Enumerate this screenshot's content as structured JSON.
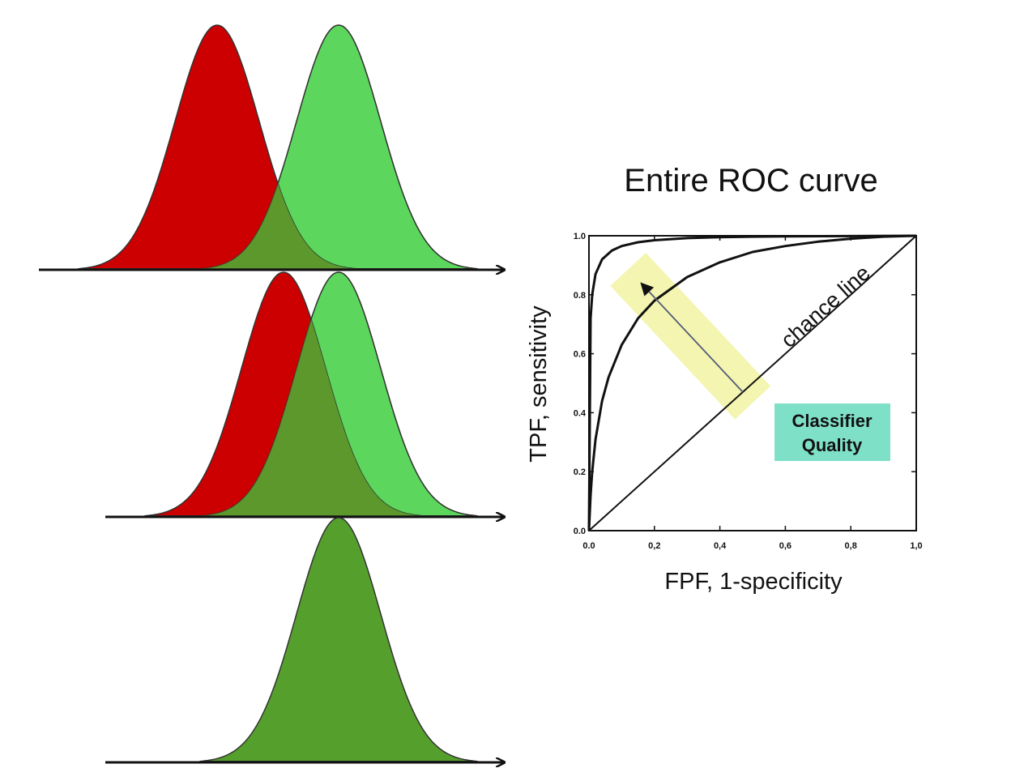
{
  "colors": {
    "negative_fill": "#cc0000",
    "positive_fill": "#5cd65c",
    "overlap_fill": "#55a02d",
    "outline": "#333333",
    "axis": "#111111",
    "highlight_band": "#f3f5b0",
    "badge_fill": "#7fe0c8"
  },
  "distributions": [
    {
      "panel": "top",
      "negative_mean": 2.68,
      "positive_mean": 4.18,
      "sd": 0.52
    },
    {
      "panel": "middle",
      "negative_mean": 3.5,
      "positive_mean": 4.18,
      "sd": 0.52
    },
    {
      "panel": "bottom",
      "negative_mean": 4.18,
      "positive_mean": 4.18,
      "sd": 0.52
    }
  ],
  "chart_data": {
    "type": "line",
    "title": "Entire ROC curve",
    "xlabel": "FPF, 1-specificity",
    "ylabel": "TPF, sensitivity",
    "xlim": [
      0,
      1
    ],
    "ylim": [
      0,
      1
    ],
    "x_tick_labels": [
      "0.0",
      "0,2",
      "0,4",
      "0,6",
      "0,8",
      "1,0"
    ],
    "y_tick_labels": [
      "0.0",
      "0.2",
      "0.4",
      "0.6",
      "0.8",
      "1.0"
    ],
    "x_ticks": [
      0,
      0.2,
      0.4,
      0.6,
      0.8,
      1.0
    ],
    "y_ticks": [
      0,
      0.2,
      0.4,
      0.6,
      0.8,
      1.0
    ],
    "series": [
      {
        "x": [
          0,
          0.005,
          0.01,
          0.02,
          0.04,
          0.07,
          0.1,
          0.15,
          0.2,
          0.3,
          0.4,
          0.5,
          0.6,
          0.8,
          1.0
        ],
        "y": [
          0,
          0.72,
          0.8,
          0.87,
          0.92,
          0.95,
          0.965,
          0.978,
          0.985,
          0.992,
          0.995,
          0.997,
          0.998,
          0.999,
          1.0
        ]
      },
      {
        "x": [
          0,
          0.005,
          0.01,
          0.02,
          0.04,
          0.06,
          0.1,
          0.15,
          0.2,
          0.3,
          0.4,
          0.5,
          0.6,
          0.7,
          0.8,
          0.9,
          1.0
        ],
        "y": [
          0,
          0.12,
          0.2,
          0.31,
          0.44,
          0.52,
          0.63,
          0.72,
          0.78,
          0.86,
          0.91,
          0.945,
          0.965,
          0.98,
          0.99,
          0.997,
          1.0
        ]
      },
      {
        "x": [
          0,
          1
        ],
        "y": [
          0,
          1
        ]
      }
    ],
    "annotations": {
      "chance_line": "chance line",
      "badge": [
        "Classifier",
        "Quality"
      ]
    },
    "grid": false,
    "legend": "none"
  }
}
